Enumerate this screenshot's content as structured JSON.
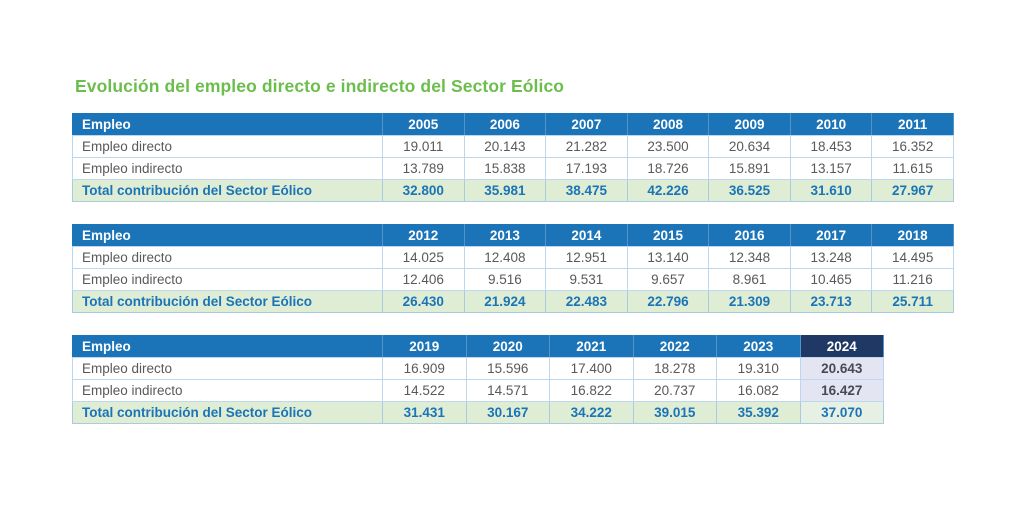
{
  "title": "Evolución del empleo directo e indirecto del Sector Eólico",
  "row_labels": {
    "header": "Empleo",
    "direct": "Empleo directo",
    "indirect": "Empleo indirecto",
    "total": "Total contribución del Sector Eólico"
  },
  "colors": {
    "title_green": "#6CBE4C",
    "header_blue": "#1B74B8",
    "highlight_navy": "#1F3864",
    "border_blue": "#9DC3E6",
    "data_gray": "#595959",
    "accent_blue": "#1B74B8",
    "total_bg": "#DEEDD3",
    "highlight_cell_bg": "#E3E5F2",
    "highlight_total_bg": "#E6F0E3"
  },
  "chart_data": {
    "type": "table",
    "title": "Evolución del empleo directo e indirecto del Sector Eólico",
    "tables": [
      {
        "years": [
          "2005",
          "2006",
          "2007",
          "2008",
          "2009",
          "2010",
          "2011"
        ],
        "direct": [
          "19.011",
          "20.143",
          "21.282",
          "23.500",
          "20.634",
          "18.453",
          "16.352"
        ],
        "indirect": [
          "13.789",
          "15.838",
          "17.193",
          "18.726",
          "15.891",
          "13.157",
          "11.615"
        ],
        "total": [
          "32.800",
          "35.981",
          "38.475",
          "42.226",
          "36.525",
          "31.610",
          "27.967"
        ],
        "highlight_year": null
      },
      {
        "years": [
          "2012",
          "2013",
          "2014",
          "2015",
          "2016",
          "2017",
          "2018"
        ],
        "direct": [
          "14.025",
          "12.408",
          "12.951",
          "13.140",
          "12.348",
          "13.248",
          "14.495"
        ],
        "indirect": [
          "12.406",
          "9.516",
          "9.531",
          "9.657",
          "8.961",
          "10.465",
          "11.216"
        ],
        "total": [
          "26.430",
          "21.924",
          "22.483",
          "22.796",
          "21.309",
          "23.713",
          "25.711"
        ],
        "highlight_year": null
      },
      {
        "years": [
          "2019",
          "2020",
          "2021",
          "2022",
          "2023",
          "2024"
        ],
        "direct": [
          "16.909",
          "15.596",
          "17.400",
          "18.278",
          "19.310",
          "20.643"
        ],
        "indirect": [
          "14.522",
          "14.571",
          "16.822",
          "20.737",
          "16.082",
          "16.427"
        ],
        "total": [
          "31.431",
          "30.167",
          "34.222",
          "39.015",
          "35.392",
          "37.070"
        ],
        "highlight_year": "2024"
      }
    ]
  }
}
